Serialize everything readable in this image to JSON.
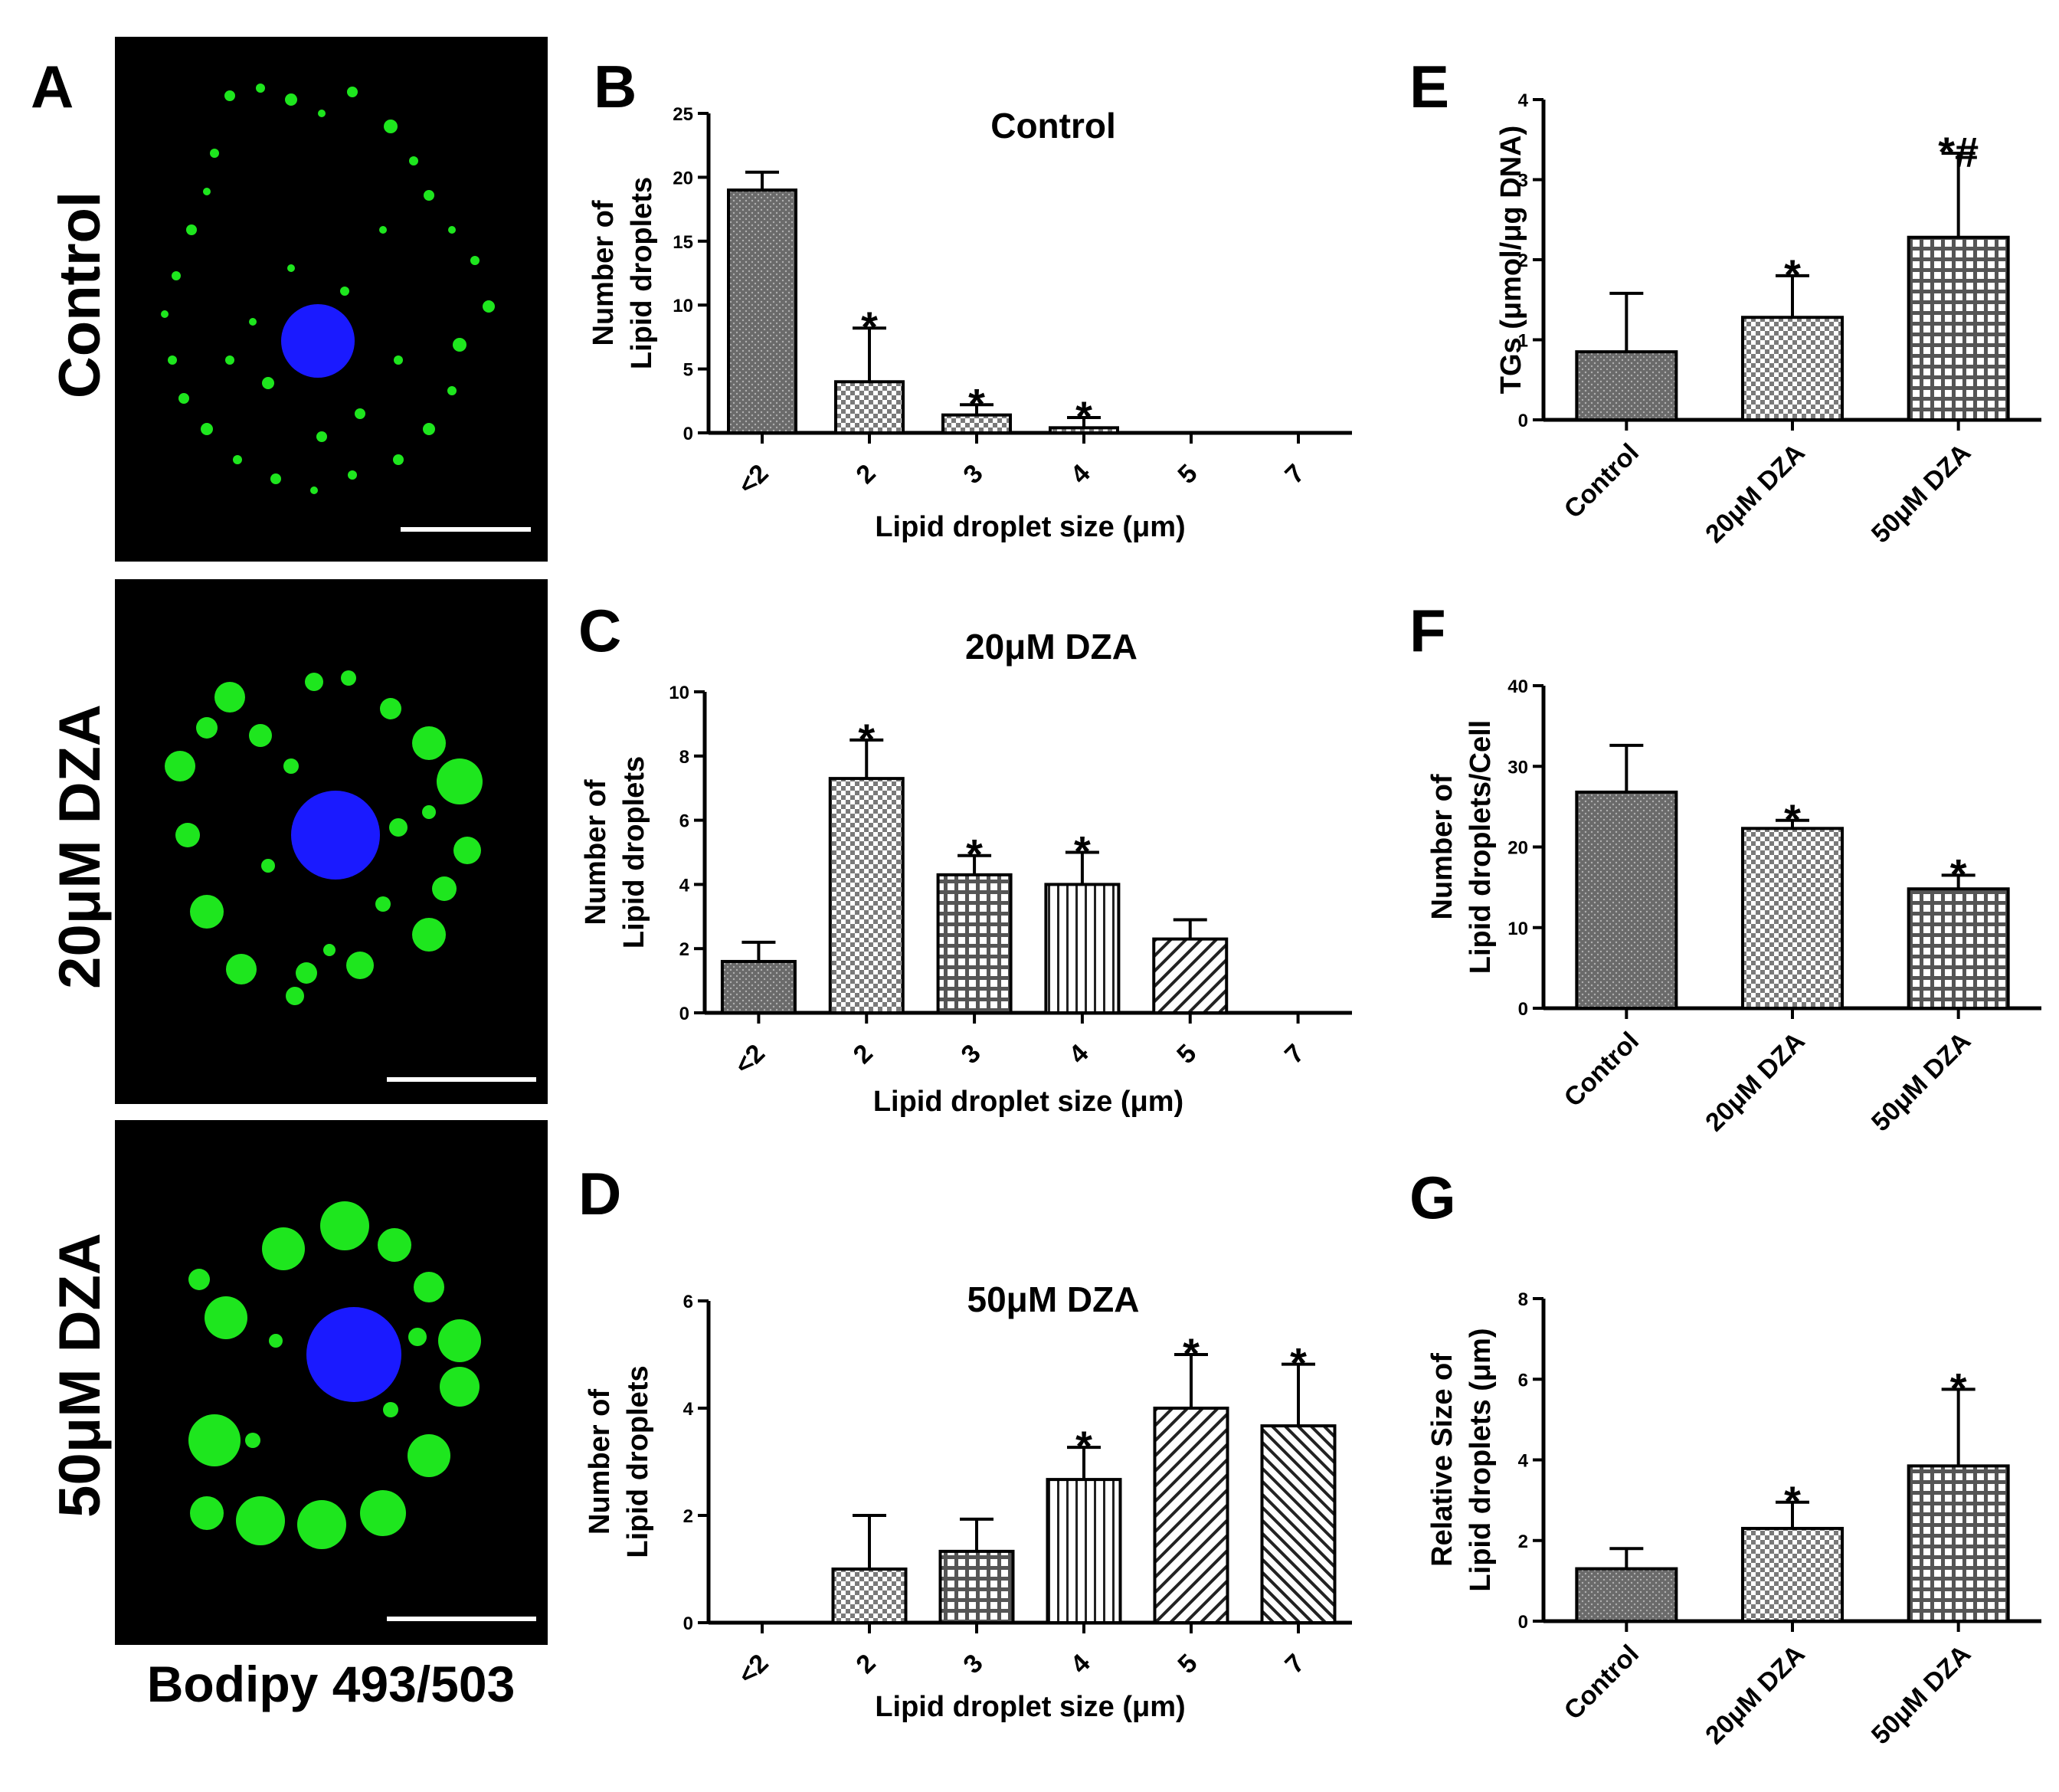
{
  "panel_a": {
    "letter": "A",
    "rows": [
      "Control",
      "20μM DZA",
      "50μM DZA"
    ],
    "caption": "Bodipy 493/503",
    "colors": {
      "background": "#000000",
      "lipid": "#1ee61e",
      "nucleus": "#1a1aff",
      "scale_bar": "#ffffff"
    }
  },
  "chart_data": [
    {
      "id": "B",
      "type": "bar",
      "letter": "B",
      "title": "Control",
      "xlabel": "Lipid droplet size (μm)",
      "ylabel": "Number of Lipid droplets",
      "categories": [
        "<2",
        "2",
        "3",
        "4",
        "5",
        "7"
      ],
      "values": [
        19,
        4,
        1.4,
        0.4,
        0,
        0
      ],
      "errors": [
        1.4,
        4.2,
        0.8,
        0.8,
        0,
        0
      ],
      "significance": [
        "",
        "*",
        "*",
        "*",
        "",
        ""
      ],
      "ylim": [
        0,
        25
      ],
      "yticks": [
        0,
        5,
        10,
        15,
        20,
        25
      ]
    },
    {
      "id": "C",
      "type": "bar",
      "letter": "C",
      "title": "20μM DZA",
      "xlabel": "Lipid droplet size (μm)",
      "ylabel": "Number of Lipid droplets",
      "categories": [
        "<2",
        "2",
        "3",
        "4",
        "5",
        "7"
      ],
      "values": [
        1.6,
        7.3,
        4.3,
        4,
        2.3,
        0
      ],
      "errors": [
        0.6,
        1.2,
        0.6,
        1.0,
        0.6,
        0
      ],
      "significance": [
        "",
        "*",
        "*",
        "*",
        "",
        ""
      ],
      "ylim": [
        0,
        10
      ],
      "yticks": [
        0,
        2,
        4,
        6,
        8,
        10
      ]
    },
    {
      "id": "D",
      "type": "bar",
      "letter": "D",
      "title": "50μM DZA",
      "xlabel": "Lipid droplet size (μm)",
      "ylabel": "Number of Lipid droplets",
      "categories": [
        "<2",
        "2",
        "3",
        "4",
        "5",
        "7"
      ],
      "values": [
        0,
        1,
        1.33,
        2.67,
        4,
        3.67
      ],
      "errors": [
        0,
        1.0,
        0.6,
        0.6,
        1.0,
        1.15
      ],
      "significance": [
        "",
        "",
        "",
        "*",
        "*",
        "*"
      ],
      "ylim": [
        0,
        6
      ],
      "yticks": [
        0,
        2,
        4,
        6
      ]
    },
    {
      "id": "E",
      "type": "bar",
      "letter": "E",
      "title": "",
      "xlabel": "",
      "ylabel": "TGs (μmol/μg DNA)",
      "categories": [
        "Control",
        "20μM DZA",
        "50μM DZA"
      ],
      "values": [
        0.85,
        1.28,
        2.28
      ],
      "errors": [
        0.73,
        0.52,
        1.05
      ],
      "significance": [
        "",
        "*",
        "*#"
      ],
      "ylim": [
        0,
        4
      ],
      "yticks": [
        0,
        1,
        2,
        3,
        4
      ]
    },
    {
      "id": "F",
      "type": "bar",
      "letter": "F",
      "title": "",
      "xlabel": "",
      "ylabel": "Number of Lipid droplets/Cell",
      "categories": [
        "Control",
        "20μM DZA",
        "50μM DZA"
      ],
      "values": [
        26.8,
        22.3,
        14.8
      ],
      "errors": [
        5.8,
        1.0,
        1.7
      ],
      "significance": [
        "",
        "*",
        "*"
      ],
      "ylim": [
        0,
        40
      ],
      "yticks": [
        0,
        10,
        20,
        30,
        40
      ]
    },
    {
      "id": "G",
      "type": "bar",
      "letter": "G",
      "title": "",
      "xlabel": "",
      "ylabel": "Relative Size of Lipid droplets (μm)",
      "categories": [
        "Control",
        "20μM DZA",
        "50μM DZA"
      ],
      "values": [
        1.3,
        2.3,
        3.85
      ],
      "errors": [
        0.5,
        0.65,
        1.9
      ],
      "significance": [
        "",
        "*",
        "*"
      ],
      "ylim": [
        0,
        8
      ],
      "yticks": [
        0,
        2,
        4,
        6,
        8
      ]
    }
  ]
}
